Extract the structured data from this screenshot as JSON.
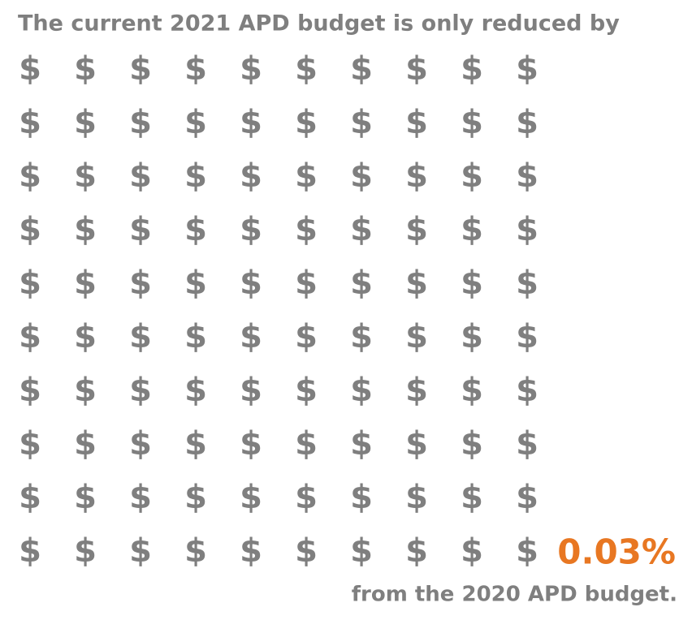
{
  "chart_data": {
    "type": "pictogram",
    "title": "The current 2021 APD budget is only reduced by",
    "footer": "from the 2020 APD budget.",
    "icon": "$",
    "rows": 10,
    "columns": 10,
    "values": [
      0.03
    ],
    "value_labels": [
      "0.03%"
    ],
    "color": "#e87722",
    "base_color": "#7f7f7f"
  }
}
